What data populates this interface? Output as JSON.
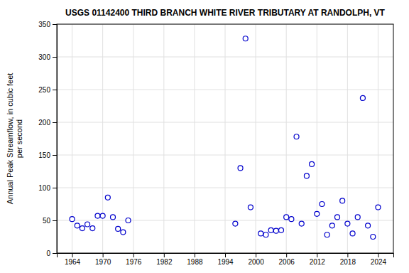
{
  "chart_data": {
    "type": "scatter",
    "title": "USGS 01142400 THIRD BRANCH WHITE RIVER TRIBUTARY AT RANDOLPH, VT",
    "y_label": "Annual Peak Streamflow, in cubic feet\nper second",
    "x": [
      1964,
      1965,
      1966,
      1967,
      1968,
      1969,
      1970,
      1971,
      1972,
      1973,
      1974,
      1975,
      1996,
      1997,
      1998,
      1999,
      2001,
      2002,
      2003,
      2004,
      2005,
      2006,
      2007,
      2008,
      2009,
      2010,
      2011,
      2012,
      2013,
      2014,
      2015,
      2016,
      2017,
      2018,
      2019,
      2020,
      2021,
      2022,
      2023,
      2024
    ],
    "values": [
      52,
      42,
      38,
      44,
      38,
      57,
      57,
      85,
      55,
      37,
      32,
      50,
      45,
      130,
      328,
      70,
      30,
      28,
      35,
      34,
      35,
      55,
      52,
      178,
      45,
      118,
      136,
      60,
      75,
      28,
      42,
      55,
      80,
      45,
      30,
      55,
      237,
      42,
      25,
      70
    ],
    "color": "#0000cc",
    "marker": "open-circle",
    "xlim": [
      1961,
      2027
    ],
    "ylim": [
      0,
      350
    ],
    "xticks": [
      1964,
      1970,
      1976,
      1982,
      1988,
      1994,
      2000,
      2006,
      2012,
      2018,
      2024
    ],
    "yticks": [
      0,
      50,
      100,
      150,
      200,
      250,
      300,
      350
    ],
    "grid": true
  }
}
